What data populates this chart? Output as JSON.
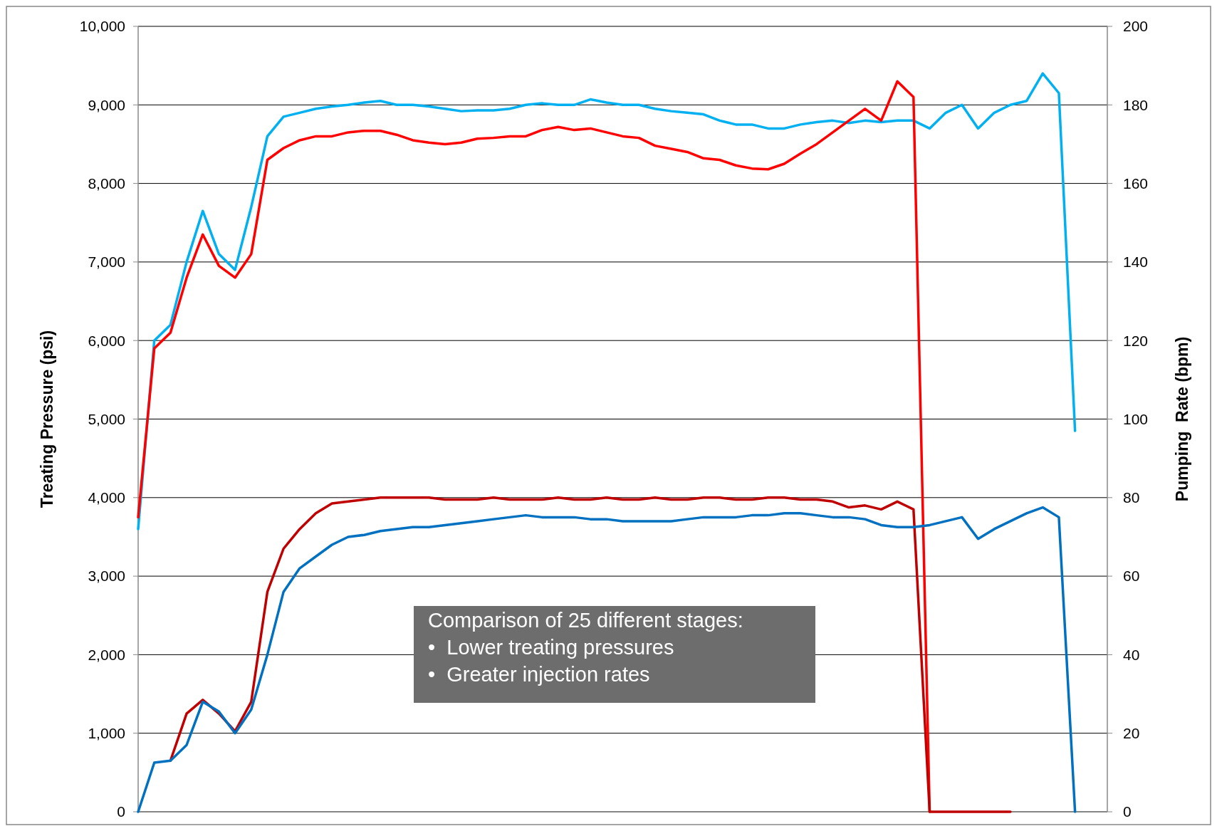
{
  "chart_data": {
    "type": "line",
    "xlabel": null,
    "ylabel": "Treating Pressure (psi)",
    "y2label": "Pumping  Rate (bpm)",
    "categories": [
      null,
      null,
      null,
      null,
      null,
      null,
      null,
      null,
      null,
      null,
      null,
      null,
      null,
      null,
      null,
      null,
      null,
      null,
      null,
      null,
      null,
      null,
      null,
      null,
      null,
      null,
      null,
      null,
      null,
      null,
      null,
      null,
      null,
      null,
      null,
      null,
      null,
      null,
      null,
      null,
      null,
      null,
      null,
      null,
      null,
      null,
      null,
      null,
      null,
      null,
      null,
      null,
      null,
      null,
      null,
      null,
      null,
      null,
      null,
      null,
      null
    ],
    "series": [
      {
        "color": "#00b0f0",
        "values": [
          3600,
          6000,
          6200,
          7000,
          7650,
          7100,
          6900,
          7700,
          8600,
          8850,
          8900,
          8950,
          8980,
          9000,
          9030,
          9050,
          9000,
          9000,
          8980,
          8950,
          8920,
          8930,
          8930,
          8950,
          9000,
          9020,
          9000,
          9000,
          9070,
          9030,
          9000,
          9000,
          8950,
          8920,
          8900,
          8880,
          8800,
          8750,
          8750,
          8700,
          8700,
          8750,
          8780,
          8800,
          8770,
          8800,
          8780,
          8800,
          8800,
          8700,
          8900,
          9000,
          8700,
          8900,
          9000,
          9050,
          9400,
          9150,
          4850,
          null,
          null
        ]
      },
      {
        "color": "#ff0000",
        "values": [
          3750,
          5900,
          6100,
          6800,
          7350,
          6950,
          6800,
          7100,
          8300,
          8450,
          8550,
          8600,
          8600,
          8650,
          8670,
          8670,
          8620,
          8550,
          8520,
          8500,
          8520,
          8570,
          8580,
          8600,
          8600,
          8680,
          8720,
          8680,
          8700,
          8650,
          8600,
          8580,
          8480,
          8440,
          8400,
          8320,
          8300,
          8230,
          8190,
          8180,
          8250,
          8380,
          8500,
          8650,
          8800,
          8950,
          8800,
          9300,
          9100,
          0,
          null,
          null,
          null,
          null,
          null,
          null,
          null,
          null,
          null,
          null,
          null
        ]
      },
      {
        "color": "#c00000",
        "axis": "y2",
        "values": [
          null,
          null,
          13,
          25,
          28.5,
          25,
          20.5,
          28,
          56,
          67,
          72,
          76,
          78.5,
          79,
          79.5,
          80,
          80,
          80,
          80,
          79.5,
          79.5,
          79.5,
          80,
          79.5,
          79.5,
          79.5,
          80,
          79.5,
          79.5,
          80,
          79.5,
          79.5,
          80,
          79.5,
          79.5,
          80,
          80,
          79.5,
          79.5,
          80,
          80,
          79.5,
          79.5,
          79,
          77.5,
          78,
          77,
          79,
          77,
          0,
          0,
          0,
          0,
          0,
          0,
          null,
          null,
          null,
          null,
          null,
          null
        ]
      },
      {
        "color": "#0070c0",
        "axis": "y2",
        "values": [
          0,
          12.5,
          13,
          17,
          28,
          25.5,
          20,
          26,
          40,
          56,
          62,
          65,
          68,
          70,
          70.5,
          71.5,
          72,
          72.5,
          72.5,
          73,
          73.5,
          74,
          74.5,
          75,
          75.5,
          75,
          75,
          75,
          74.5,
          74.5,
          74,
          74,
          74,
          74,
          74.5,
          75,
          75,
          75,
          75.5,
          75.5,
          76,
          76,
          75.5,
          75,
          75,
          74.5,
          73,
          72.5,
          72.5,
          73,
          74,
          75,
          69.5,
          72,
          74,
          76,
          77.5,
          75,
          0,
          null,
          null
        ]
      }
    ],
    "ylim": [
      0,
      10000
    ],
    "yticks": [
      0,
      {
        "value": 1000,
        "label": "1,000"
      },
      {
        "value": 2000,
        "label": "2,000"
      },
      {
        "value": 3000,
        "label": "3,000"
      },
      {
        "value": 4000,
        "label": "4,000"
      },
      {
        "value": 5000,
        "label": "5,000"
      },
      {
        "value": 6000,
        "label": "6,000"
      },
      {
        "value": 7000,
        "label": "7,000"
      },
      {
        "value": 8000,
        "label": "8,000"
      },
      {
        "value": 9000,
        "label": "9,000"
      },
      {
        "value": 10000,
        "label": "10,000"
      }
    ],
    "y2lim": [
      0,
      200
    ],
    "y2ticks": [
      0,
      20,
      40,
      60,
      80,
      100,
      120,
      140,
      160,
      180,
      200
    ],
    "grid": "y",
    "marker": "none",
    "line_style": "solid",
    "annotations": [
      "Comparison of 25 different stages:",
      "•  Lower treating pressures",
      "•  Greater injection rates"
    ]
  }
}
